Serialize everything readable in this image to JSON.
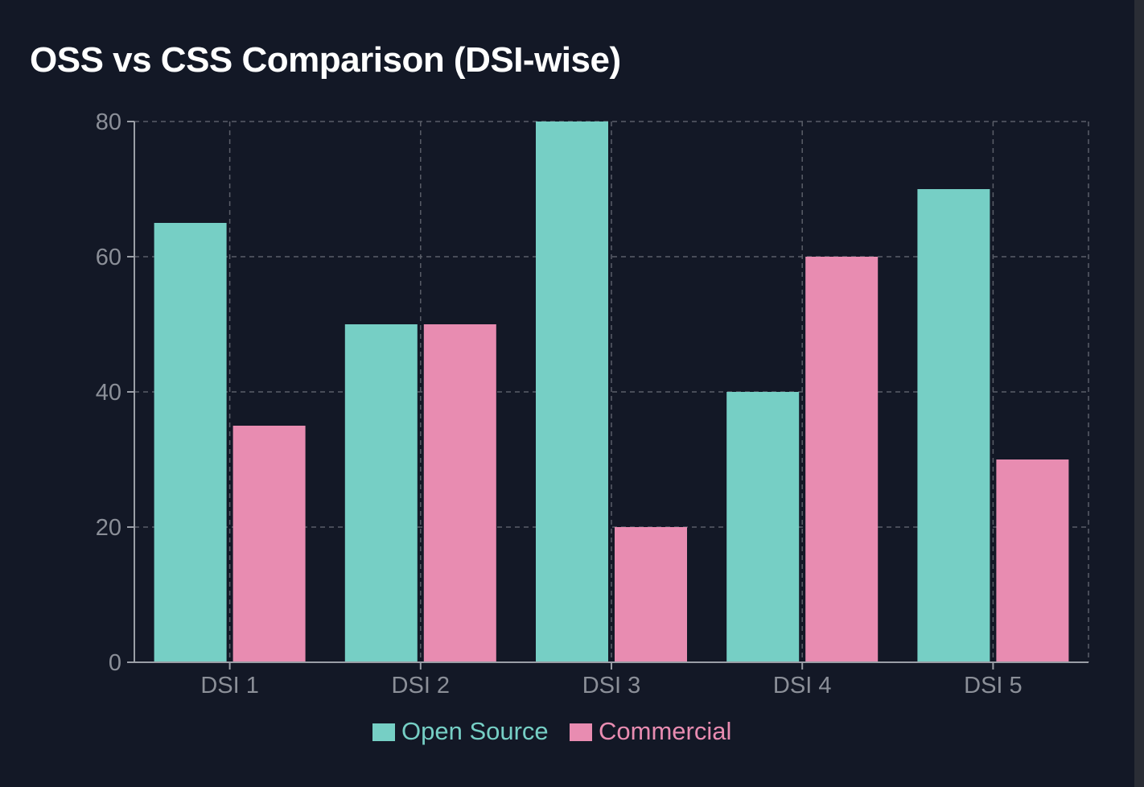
{
  "chart_data": {
    "type": "bar",
    "title": "OSS vs CSS Comparison (DSI-wise)",
    "xlabel": "",
    "ylabel": "",
    "categories": [
      "DSI 1",
      "DSI 2",
      "DSI 3",
      "DSI 4",
      "DSI 5"
    ],
    "series": [
      {
        "name": "Open Source",
        "color": "#76cfc5",
        "values": [
          65,
          50,
          80,
          40,
          70
        ]
      },
      {
        "name": "Commercial",
        "color": "#e88cb1",
        "values": [
          35,
          50,
          20,
          60,
          30
        ]
      }
    ],
    "ylim": [
      0,
      80
    ],
    "yticks": [
      0,
      20,
      40,
      60,
      80
    ],
    "grid": true,
    "legend": "bottom-center",
    "colors": {
      "background": "#131826",
      "grid": "#5a5e68",
      "axis": "#9a9ea6",
      "tick_text": "#8b8f98",
      "title": "#ffffff"
    }
  }
}
